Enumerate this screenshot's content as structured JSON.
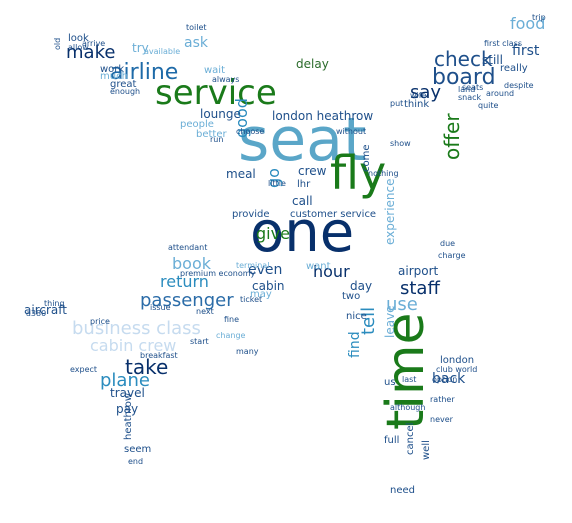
{
  "palette": {
    "dark_navy": "#08306b",
    "navy": "#1e4f8a",
    "green": "#1a7a1a",
    "teal": "#2b8cbe",
    "light_blue": "#6baed6",
    "pale_blue": "#a6c8e0",
    "grey_blue": "#9ecae1",
    "dark_green": "#2a6b2a"
  },
  "words": [
    {
      "text": "seat",
      "color": "#5aa6c8"
    },
    {
      "text": "one",
      "color": "#08306b"
    },
    {
      "text": "fly",
      "color": "#1a7a1a"
    },
    {
      "text": "time",
      "color": "#1a7a1a"
    },
    {
      "text": "service",
      "color": "#1a7a1a"
    },
    {
      "text": "airline",
      "color": "#1e6aa8"
    },
    {
      "text": "board",
      "color": "#1e4f8a"
    },
    {
      "text": "check",
      "color": "#1e4f8a"
    },
    {
      "text": "make",
      "color": "#08306b"
    },
    {
      "text": "say",
      "color": "#08306b"
    },
    {
      "text": "passenger",
      "color": "#2b6ca8"
    },
    {
      "text": "take",
      "color": "#08306b"
    },
    {
      "text": "plane",
      "color": "#2b8cbe"
    },
    {
      "text": "staff",
      "color": "#08306b"
    },
    {
      "text": "use",
      "color": "#6baed6"
    },
    {
      "text": "tell",
      "color": "#2b8cbe"
    },
    {
      "text": "food",
      "color": "#6baed6"
    },
    {
      "text": "business class",
      "color": "#c6dbef"
    },
    {
      "text": "cabin crew",
      "color": "#c6dbef"
    },
    {
      "text": "book",
      "color": "#6baed6"
    },
    {
      "text": "return",
      "color": "#2b8cbe"
    },
    {
      "text": "hour",
      "color": "#08306b"
    },
    {
      "text": "even",
      "color": "#1e4f8a"
    },
    {
      "text": "give",
      "color": "#1a7a1a"
    },
    {
      "text": "offer",
      "color": "#1a7a1a"
    },
    {
      "text": "good",
      "color": "#2b8cbe"
    },
    {
      "text": "go",
      "color": "#2b8cbe"
    },
    {
      "text": "london heathrow",
      "color": "#1e4f8a"
    },
    {
      "text": "airport",
      "color": "#1e4f8a"
    },
    {
      "text": "first",
      "color": "#1e4f8a"
    },
    {
      "text": "still",
      "color": "#1e4f8a"
    },
    {
      "text": "ask",
      "color": "#6baed6"
    },
    {
      "text": "delay",
      "color": "#2a6b2a"
    },
    {
      "text": "lounge",
      "color": "#1e4f8a"
    },
    {
      "text": "aircraft",
      "color": "#1e4f8a"
    },
    {
      "text": "travel",
      "color": "#1e4f8a"
    },
    {
      "text": "pay",
      "color": "#1e4f8a"
    },
    {
      "text": "cabin",
      "color": "#1e4f8a"
    },
    {
      "text": "find",
      "color": "#2b8cbe"
    },
    {
      "text": "leave",
      "color": "#6baed6"
    },
    {
      "text": "back",
      "color": "#1e4f8a"
    },
    {
      "text": "day",
      "color": "#1e4f8a"
    },
    {
      "text": "meal",
      "color": "#1e4f8a"
    },
    {
      "text": "crew",
      "color": "#1e4f8a"
    },
    {
      "text": "call",
      "color": "#1e4f8a"
    },
    {
      "text": "experience",
      "color": "#6baed6"
    },
    {
      "text": "try",
      "color": "#6baed6"
    },
    {
      "text": "work",
      "color": "#1e4f8a"
    },
    {
      "text": "great",
      "color": "#1e4f8a"
    },
    {
      "text": "look",
      "color": "#1e4f8a"
    },
    {
      "text": "really",
      "color": "#1e4f8a"
    },
    {
      "text": "think",
      "color": "#1e4f8a"
    },
    {
      "text": "wait",
      "color": "#6baed6"
    },
    {
      "text": "customer service",
      "color": "#1e4f8a"
    },
    {
      "text": "london",
      "color": "#1e4f8a"
    },
    {
      "text": "full",
      "color": "#1e4f8a"
    },
    {
      "text": "cancel",
      "color": "#1e4f8a"
    },
    {
      "text": "need",
      "color": "#1e4f8a"
    },
    {
      "text": "seem",
      "color": "#1e4f8a"
    },
    {
      "text": "heathrow",
      "color": "#1e4f8a"
    },
    {
      "text": "people",
      "color": "#6baed6"
    },
    {
      "text": "better",
      "color": "#6baed6"
    },
    {
      "text": "want",
      "color": "#6baed6"
    },
    {
      "text": "two",
      "color": "#1e4f8a"
    },
    {
      "text": "nice",
      "color": "#1e4f8a"
    },
    {
      "text": "us",
      "color": "#1e4f8a"
    },
    {
      "text": "may",
      "color": "#6baed6"
    },
    {
      "text": "much",
      "color": "#6baed6"
    },
    {
      "text": "lhr",
      "color": "#1e4f8a"
    },
    {
      "text": "provide",
      "color": "#1e4f8a"
    },
    {
      "text": "premium economy",
      "color": "#1e4f8a"
    },
    {
      "text": "attendant",
      "color": "#1e4f8a"
    },
    {
      "text": "ticket",
      "color": "#1e4f8a"
    },
    {
      "text": "next",
      "color": "#1e4f8a"
    },
    {
      "text": "price",
      "color": "#1e4f8a"
    },
    {
      "text": "breakfast",
      "color": "#1e4f8a"
    },
    {
      "text": "start",
      "color": "#1e4f8a"
    },
    {
      "text": "club world",
      "color": "#1e4f8a"
    },
    {
      "text": "always",
      "color": "#1e4f8a"
    },
    {
      "text": "choose",
      "color": "#1e4f8a"
    },
    {
      "text": "little",
      "color": "#1e4f8a"
    },
    {
      "text": "without",
      "color": "#1e4f8a"
    },
    {
      "text": "thing",
      "color": "#1e4f8a"
    },
    {
      "text": "available",
      "color": "#6baed6"
    },
    {
      "text": "arrive",
      "color": "#1e4f8a"
    },
    {
      "text": "toilet",
      "color": "#1e4f8a"
    },
    {
      "text": "trip",
      "color": "#1e4f8a"
    },
    {
      "text": "first class",
      "color": "#1e4f8a"
    },
    {
      "text": "despite",
      "color": "#1e4f8a"
    },
    {
      "text": "around",
      "color": "#1e4f8a"
    },
    {
      "text": "quite",
      "color": "#1e4f8a"
    },
    {
      "text": "land",
      "color": "#1e4f8a"
    },
    {
      "text": "snack",
      "color": "#1e4f8a"
    },
    {
      "text": "wife",
      "color": "#1e4f8a"
    },
    {
      "text": "put",
      "color": "#1e4f8a"
    },
    {
      "text": "show",
      "color": "#1e4f8a"
    },
    {
      "text": "run",
      "color": "#1e4f8a"
    },
    {
      "text": "nothing",
      "color": "#1e4f8a"
    },
    {
      "text": "come",
      "color": "#1e4f8a"
    },
    {
      "text": "charge",
      "color": "#1e4f8a"
    },
    {
      "text": "due",
      "color": "#1e4f8a"
    },
    {
      "text": "although",
      "color": "#1e4f8a"
    },
    {
      "text": "never",
      "color": "#1e4f8a"
    },
    {
      "text": "last",
      "color": "#1e4f8a"
    },
    {
      "text": "rather",
      "color": "#1e4f8a"
    },
    {
      "text": "end",
      "color": "#1e4f8a"
    },
    {
      "text": "many",
      "color": "#1e4f8a"
    },
    {
      "text": "change",
      "color": "#6baed6"
    },
    {
      "text": "issue",
      "color": "#1e4f8a"
    },
    {
      "text": "terminal",
      "color": "#6baed6"
    },
    {
      "text": "fine",
      "color": "#1e4f8a"
    },
    {
      "text": "allow",
      "color": "#1e4f8a"
    },
    {
      "text": "old",
      "color": "#1e4f8a"
    },
    {
      "text": "a380",
      "color": "#1e4f8a"
    },
    {
      "text": "expect",
      "color": "#1e4f8a"
    },
    {
      "text": "enough",
      "color": "#1e4f8a"
    },
    {
      "text": "seats",
      "color": "#1e4f8a"
    },
    {
      "text": "option",
      "color": "#1e4f8a"
    },
    {
      "text": "well",
      "color": "#1e4f8a"
    }
  ]
}
